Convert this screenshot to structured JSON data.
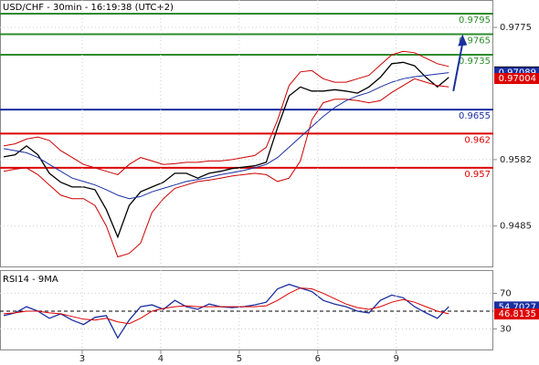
{
  "chart_data": [
    {
      "type": "line",
      "title": "USD/CHF - 30min - 16:19:38 (UTC+2)",
      "x": [
        0,
        1,
        2,
        3,
        4,
        5,
        6,
        7,
        8,
        9,
        10,
        11,
        12,
        13,
        14,
        15,
        16,
        17,
        18,
        19,
        20,
        21,
        22,
        23,
        24,
        25,
        26,
        27,
        28,
        29,
        30,
        31,
        32,
        33,
        34,
        35,
        36,
        37,
        38,
        39
      ],
      "xlim": [
        -0.32,
        42.9
      ],
      "xticks": [
        {
          "value": 6.88,
          "label": "3"
        },
        {
          "value": 13.76,
          "label": "4"
        },
        {
          "value": 20.64,
          "label": "5"
        },
        {
          "value": 27.52,
          "label": "6"
        },
        {
          "value": 34.4,
          "label": "9"
        }
      ],
      "ylim": [
        0.9426,
        0.9815
      ],
      "yticks": [
        0.9485,
        0.9582,
        0.9775
      ],
      "grid": true,
      "series": [
        {
          "color": "#000000",
          "values": [
            0.9586,
            0.9589,
            0.9602,
            0.9589,
            0.9562,
            0.9549,
            0.9542,
            0.9542,
            0.9538,
            0.9509,
            0.9469,
            0.9515,
            0.9535,
            0.9542,
            0.9549,
            0.9562,
            0.9562,
            0.9555,
            0.9562,
            0.9565,
            0.9569,
            0.9571,
            0.9573,
            0.9578,
            0.9629,
            0.9675,
            0.9688,
            0.9682,
            0.9682,
            0.9684,
            0.9682,
            0.9679,
            0.9688,
            0.9702,
            0.9722,
            0.9724,
            0.9719,
            0.9702,
            0.9688,
            0.9702
          ]
        },
        {
          "color": "#cc0000",
          "values": [
            0.9602,
            0.9605,
            0.9612,
            0.9615,
            0.961,
            0.9595,
            0.9585,
            0.9575,
            0.957,
            0.9565,
            0.956,
            0.9575,
            0.9585,
            0.958,
            0.9575,
            0.9576,
            0.9578,
            0.9578,
            0.958,
            0.958,
            0.9582,
            0.9585,
            0.9588,
            0.96,
            0.964,
            0.969,
            0.971,
            0.9712,
            0.97,
            0.9695,
            0.9695,
            0.97,
            0.9705,
            0.972,
            0.9735,
            0.974,
            0.9738,
            0.973,
            0.9722,
            0.9718
          ]
        },
        {
          "color": "#cc0000",
          "values": [
            0.9565,
            0.9568,
            0.957,
            0.956,
            0.9545,
            0.953,
            0.9525,
            0.9525,
            0.9515,
            0.9485,
            0.944,
            0.9445,
            0.946,
            0.9505,
            0.9525,
            0.954,
            0.9545,
            0.955,
            0.9552,
            0.9555,
            0.9558,
            0.956,
            0.9562,
            0.956,
            0.955,
            0.9555,
            0.958,
            0.964,
            0.9665,
            0.967,
            0.967,
            0.9668,
            0.9665,
            0.9668,
            0.968,
            0.969,
            0.97,
            0.9695,
            0.969,
            0.9688
          ]
        },
        {
          "color": "#1a2fa0",
          "values": [
            0.9598,
            0.9595,
            0.9592,
            0.9585,
            0.9575,
            0.9565,
            0.9555,
            0.955,
            0.9545,
            0.9538,
            0.953,
            0.9525,
            0.9528,
            0.9535,
            0.954,
            0.9545,
            0.955,
            0.9553,
            0.9556,
            0.956,
            0.9563,
            0.9566,
            0.957,
            0.9575,
            0.9585,
            0.96,
            0.9615,
            0.963,
            0.9645,
            0.9658,
            0.9668,
            0.9675,
            0.968,
            0.9688,
            0.9695,
            0.97,
            0.9703,
            0.9705,
            0.9707,
            0.9709
          ]
        }
      ],
      "levels": [
        {
          "value": 0.9795,
          "color": "#2e8b2e"
        },
        {
          "value": 0.9765,
          "color": "#2e8b2e"
        },
        {
          "value": 0.9735,
          "color": "#2e8b2e"
        },
        {
          "value": 0.9655,
          "color": "#1a2fa0"
        },
        {
          "value": 0.962,
          "color": "#dd0000"
        },
        {
          "value": 0.957,
          "color": "#dd0000"
        }
      ],
      "price_markers": [
        {
          "value": 0.971,
          "color": "#000000"
        },
        {
          "value": 0.97089,
          "color": "#1a2fa0"
        },
        {
          "value": 0.97004,
          "color": "#dd0000"
        }
      ],
      "arrow": {
        "from": 0.9682,
        "to": 0.9765,
        "color": "#1a2fa0"
      }
    },
    {
      "type": "line",
      "title": "RSI14 - 9MA",
      "ylim": [
        6,
        96
      ],
      "yticks": [
        30,
        70
      ],
      "reference": 50,
      "series": [
        {
          "color": "#1a2fa0",
          "values": [
            45,
            48,
            55,
            50,
            42,
            47,
            40,
            35,
            43,
            45,
            20,
            40,
            55,
            57,
            52,
            62,
            55,
            52,
            58,
            55,
            54,
            55,
            57,
            60,
            75,
            80,
            76,
            72,
            62,
            58,
            55,
            50,
            48,
            62,
            68,
            65,
            55,
            48,
            42,
            55
          ]
        },
        {
          "color": "#dd0000",
          "values": [
            47,
            48,
            50,
            50,
            48,
            47,
            44,
            41,
            40,
            42,
            38,
            36,
            42,
            50,
            53,
            55,
            56,
            55,
            55,
            55,
            55,
            55,
            55,
            56,
            62,
            70,
            76,
            75,
            70,
            64,
            58,
            54,
            52,
            55,
            60,
            63,
            60,
            55,
            50,
            47
          ]
        }
      ],
      "price_markers": [
        {
          "value": 54.7027,
          "color": "#1a2fa0"
        },
        {
          "value": 46.8135,
          "color": "#dd0000"
        }
      ]
    }
  ]
}
